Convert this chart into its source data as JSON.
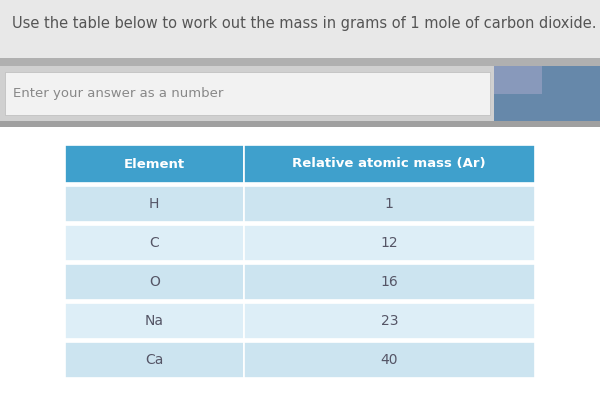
{
  "title": "Use the table below to work out the mass in grams of 1 mole of carbon dioxide.",
  "input_placeholder": "Enter your answer as a number",
  "header": [
    "Element",
    "Relative atomic mass (Ar)"
  ],
  "rows": [
    [
      "H",
      "1"
    ],
    [
      "C",
      "12"
    ],
    [
      "O",
      "16"
    ],
    [
      "Na",
      "23"
    ],
    [
      "Ca",
      "40"
    ]
  ],
  "header_bg": "#3fa0cc",
  "row_bg_light": "#cce4f0",
  "row_bg_lighter": "#ddeef7",
  "header_text_color": "#ffffff",
  "row_text_color": "#555566",
  "title_color": "#555555",
  "title_bg": "#e8e8e8",
  "input_band_bg": "#c0c0c0",
  "input_box_bg": "#f2f2f2",
  "deco_color1": "#8899aa",
  "deco_color2": "#445566",
  "fig_bg": "#ffffff",
  "title_fontsize": 10.5,
  "header_fontsize": 9.5,
  "cell_fontsize": 10,
  "col_split": 0.38
}
